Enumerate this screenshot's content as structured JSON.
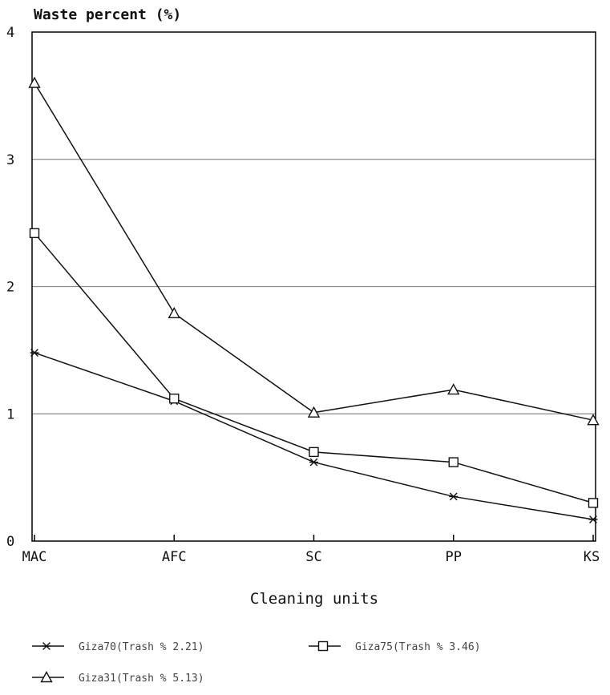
{
  "chart_data": {
    "type": "line",
    "title": "",
    "ylabel": "Waste percent (%)",
    "xlabel": "Cleaning units",
    "categories": [
      "MAC",
      "AFC",
      "SC",
      "PP",
      "KS"
    ],
    "ylim": [
      0,
      4
    ],
    "yticks": [
      "0",
      "1",
      "2",
      "3",
      "4"
    ],
    "grid": true,
    "legend_position": "bottom",
    "series": [
      {
        "name": "Giza70(Trash % 2.21)",
        "marker": "star",
        "values": [
          1.48,
          1.1,
          0.62,
          0.35,
          0.17
        ]
      },
      {
        "name": "Giza75(Trash % 3.46)",
        "marker": "square",
        "values": [
          2.42,
          1.12,
          0.7,
          0.62,
          0.3
        ]
      },
      {
        "name": "Giza31(Trash % 5.13)",
        "marker": "triangle",
        "values": [
          3.6,
          1.79,
          1.01,
          1.19,
          0.95
        ]
      }
    ]
  }
}
